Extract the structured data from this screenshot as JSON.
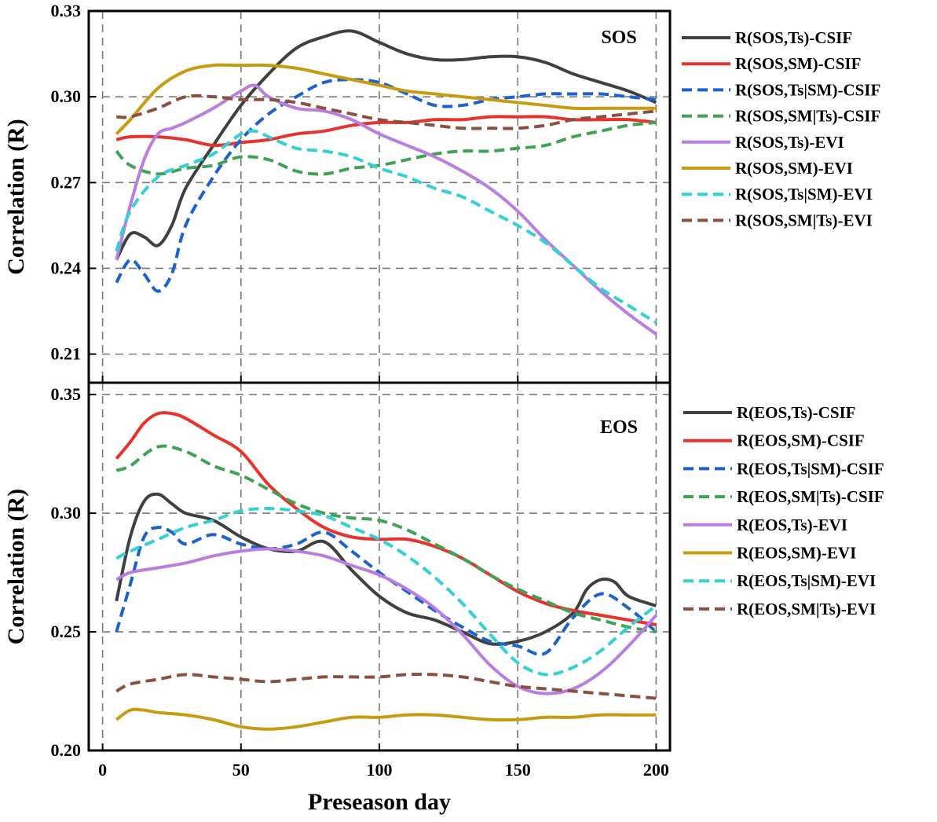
{
  "chart_data": [
    {
      "type": "line",
      "panel_label": "SOS",
      "xlabel": "Preseason day",
      "ylabel": "Correlation (R)",
      "xlim": [
        -5,
        205
      ],
      "ylim": [
        0.2,
        0.33
      ],
      "xticks": [
        0,
        50,
        100,
        150,
        200
      ],
      "xtick_labels": [
        "0",
        "50",
        "100",
        "150",
        "200"
      ],
      "yticks": [
        0.21,
        0.24,
        0.27,
        0.3,
        0.33
      ],
      "ytick_labels": [
        "0.21",
        "0.24",
        "0.27",
        "0.30",
        "0.33"
      ],
      "grid": true,
      "legend_position": "right",
      "series": [
        {
          "name": "R(SOS,Ts)-CSIF",
          "color": "#404040",
          "dash": "solid",
          "x": [
            5,
            10,
            15,
            20,
            25,
            30,
            40,
            50,
            60,
            70,
            80,
            90,
            100,
            110,
            120,
            130,
            140,
            150,
            160,
            170,
            180,
            190,
            200
          ],
          "y": [
            0.243,
            0.252,
            0.251,
            0.248,
            0.255,
            0.268,
            0.283,
            0.297,
            0.308,
            0.317,
            0.321,
            0.323,
            0.319,
            0.315,
            0.313,
            0.313,
            0.314,
            0.314,
            0.312,
            0.308,
            0.305,
            0.302,
            0.298
          ]
        },
        {
          "name": "R(SOS,SM)-CSIF",
          "color": "#e8322b",
          "dash": "solid",
          "x": [
            5,
            10,
            20,
            30,
            40,
            50,
            60,
            70,
            80,
            90,
            100,
            110,
            120,
            130,
            140,
            150,
            160,
            170,
            180,
            190,
            200
          ],
          "y": [
            0.285,
            0.286,
            0.286,
            0.285,
            0.283,
            0.284,
            0.285,
            0.287,
            0.288,
            0.29,
            0.291,
            0.291,
            0.292,
            0.292,
            0.293,
            0.293,
            0.293,
            0.292,
            0.292,
            0.292,
            0.291
          ]
        },
        {
          "name": "R(SOS,Ts|SM)-CSIF",
          "color": "#1b62cf",
          "dash": "dashed",
          "x": [
            5,
            10,
            15,
            20,
            25,
            30,
            40,
            50,
            60,
            70,
            80,
            90,
            100,
            110,
            120,
            130,
            140,
            150,
            160,
            170,
            180,
            190,
            200
          ],
          "y": [
            0.235,
            0.243,
            0.238,
            0.232,
            0.238,
            0.255,
            0.272,
            0.285,
            0.294,
            0.3,
            0.305,
            0.306,
            0.305,
            0.301,
            0.297,
            0.297,
            0.299,
            0.3,
            0.301,
            0.301,
            0.301,
            0.3,
            0.299
          ]
        },
        {
          "name": "R(SOS,SM|Ts)-CSIF",
          "color": "#3ea355",
          "dash": "dashed",
          "x": [
            5,
            10,
            20,
            30,
            40,
            50,
            60,
            70,
            80,
            90,
            100,
            110,
            120,
            130,
            140,
            150,
            160,
            170,
            180,
            190,
            200
          ],
          "y": [
            0.281,
            0.276,
            0.273,
            0.275,
            0.276,
            0.279,
            0.278,
            0.274,
            0.273,
            0.275,
            0.276,
            0.278,
            0.28,
            0.281,
            0.281,
            0.282,
            0.283,
            0.286,
            0.288,
            0.29,
            0.291
          ]
        },
        {
          "name": "R(SOS,Ts)-EVI",
          "color": "#b97ee0",
          "dash": "solid",
          "x": [
            5,
            10,
            15,
            20,
            25,
            30,
            40,
            50,
            55,
            60,
            70,
            80,
            90,
            100,
            110,
            120,
            130,
            140,
            150,
            160,
            170,
            180,
            190,
            200
          ],
          "y": [
            0.243,
            0.262,
            0.278,
            0.287,
            0.289,
            0.291,
            0.296,
            0.302,
            0.304,
            0.3,
            0.296,
            0.295,
            0.292,
            0.287,
            0.283,
            0.279,
            0.274,
            0.268,
            0.26,
            0.25,
            0.241,
            0.232,
            0.224,
            0.217
          ]
        },
        {
          "name": "R(SOS,SM)-EVI",
          "color": "#c89b13",
          "dash": "solid",
          "x": [
            5,
            10,
            20,
            30,
            40,
            50,
            60,
            70,
            80,
            90,
            100,
            110,
            120,
            130,
            140,
            150,
            160,
            170,
            180,
            190,
            200
          ],
          "y": [
            0.287,
            0.292,
            0.303,
            0.309,
            0.311,
            0.311,
            0.311,
            0.31,
            0.308,
            0.306,
            0.304,
            0.302,
            0.301,
            0.3,
            0.299,
            0.298,
            0.297,
            0.296,
            0.296,
            0.296,
            0.296
          ]
        },
        {
          "name": "R(SOS,Ts|SM)-EVI",
          "color": "#33d1d6",
          "dash": "dashed",
          "x": [
            5,
            10,
            20,
            30,
            40,
            50,
            55,
            60,
            70,
            80,
            90,
            100,
            110,
            120,
            130,
            140,
            150,
            160,
            170,
            180,
            190,
            200
          ],
          "y": [
            0.246,
            0.26,
            0.272,
            0.276,
            0.28,
            0.287,
            0.288,
            0.286,
            0.282,
            0.281,
            0.279,
            0.275,
            0.272,
            0.268,
            0.265,
            0.26,
            0.255,
            0.249,
            0.241,
            0.233,
            0.227,
            0.221
          ]
        },
        {
          "name": "R(SOS,SM|Ts)-EVI",
          "color": "#8b5042",
          "dash": "dashed",
          "x": [
            5,
            10,
            20,
            30,
            40,
            50,
            60,
            70,
            80,
            90,
            100,
            110,
            120,
            130,
            140,
            150,
            160,
            170,
            180,
            190,
            200
          ],
          "y": [
            0.293,
            0.293,
            0.296,
            0.3,
            0.3,
            0.299,
            0.299,
            0.298,
            0.296,
            0.294,
            0.292,
            0.291,
            0.29,
            0.289,
            0.289,
            0.289,
            0.29,
            0.292,
            0.293,
            0.294,
            0.295
          ]
        }
      ]
    },
    {
      "type": "line",
      "panel_label": "EOS",
      "xlabel": "Preseason day",
      "ylabel": "Correlation (R)",
      "xlim": [
        -5,
        205
      ],
      "ylim": [
        0.2,
        0.355
      ],
      "xticks": [
        0,
        50,
        100,
        150,
        200
      ],
      "xtick_labels": [
        "0",
        "50",
        "100",
        "150",
        "200"
      ],
      "yticks": [
        0.2,
        0.25,
        0.3,
        0.35
      ],
      "ytick_labels": [
        "0.20",
        "0.25",
        "0.30",
        "0.35"
      ],
      "grid": true,
      "legend_position": "right",
      "series": [
        {
          "name": "R(EOS,Ts)-CSIF",
          "color": "#404040",
          "dash": "solid",
          "x": [
            5,
            10,
            15,
            20,
            25,
            30,
            40,
            50,
            60,
            70,
            80,
            90,
            100,
            110,
            120,
            130,
            140,
            150,
            160,
            170,
            175,
            180,
            185,
            190,
            200
          ],
          "y": [
            0.263,
            0.29,
            0.305,
            0.308,
            0.304,
            0.3,
            0.297,
            0.29,
            0.285,
            0.284,
            0.288,
            0.276,
            0.265,
            0.258,
            0.255,
            0.25,
            0.245,
            0.246,
            0.25,
            0.258,
            0.268,
            0.272,
            0.271,
            0.265,
            0.261
          ]
        },
        {
          "name": "R(EOS,SM)-CSIF",
          "color": "#e8322b",
          "dash": "solid",
          "x": [
            5,
            10,
            15,
            20,
            25,
            30,
            40,
            50,
            60,
            70,
            80,
            90,
            100,
            110,
            120,
            130,
            140,
            150,
            160,
            170,
            180,
            190,
            200
          ],
          "y": [
            0.323,
            0.33,
            0.338,
            0.342,
            0.342,
            0.34,
            0.333,
            0.326,
            0.312,
            0.302,
            0.294,
            0.29,
            0.289,
            0.289,
            0.286,
            0.281,
            0.274,
            0.267,
            0.262,
            0.259,
            0.257,
            0.255,
            0.253
          ]
        },
        {
          "name": "R(EOS,Ts|SM)-CSIF",
          "color": "#1b62cf",
          "dash": "dashed",
          "x": [
            5,
            10,
            15,
            20,
            25,
            30,
            40,
            50,
            60,
            70,
            80,
            90,
            100,
            110,
            120,
            130,
            140,
            150,
            160,
            170,
            180,
            190,
            200
          ],
          "y": [
            0.25,
            0.27,
            0.29,
            0.294,
            0.292,
            0.287,
            0.291,
            0.287,
            0.285,
            0.287,
            0.292,
            0.284,
            0.275,
            0.267,
            0.259,
            0.252,
            0.246,
            0.244,
            0.241,
            0.256,
            0.266,
            0.26,
            0.25
          ]
        },
        {
          "name": "R(EOS,SM|Ts)-CSIF",
          "color": "#3ea355",
          "dash": "dashed",
          "x": [
            5,
            10,
            20,
            30,
            40,
            50,
            60,
            70,
            80,
            90,
            100,
            110,
            120,
            130,
            140,
            150,
            160,
            170,
            180,
            190,
            200
          ],
          "y": [
            0.318,
            0.32,
            0.328,
            0.326,
            0.32,
            0.316,
            0.31,
            0.304,
            0.3,
            0.298,
            0.297,
            0.293,
            0.287,
            0.281,
            0.274,
            0.268,
            0.263,
            0.258,
            0.255,
            0.252,
            0.25
          ]
        },
        {
          "name": "R(EOS,Ts)-EVI",
          "color": "#b97ee0",
          "dash": "solid",
          "x": [
            5,
            10,
            20,
            30,
            40,
            50,
            60,
            70,
            80,
            90,
            100,
            110,
            120,
            130,
            140,
            150,
            160,
            170,
            180,
            190,
            200
          ],
          "y": [
            0.272,
            0.275,
            0.277,
            0.279,
            0.282,
            0.284,
            0.285,
            0.284,
            0.282,
            0.278,
            0.274,
            0.268,
            0.26,
            0.249,
            0.236,
            0.227,
            0.224,
            0.226,
            0.233,
            0.244,
            0.257
          ]
        },
        {
          "name": "R(EOS,SM)-EVI",
          "color": "#c89b13",
          "dash": "solid",
          "x": [
            5,
            10,
            15,
            20,
            30,
            40,
            50,
            60,
            70,
            80,
            90,
            100,
            110,
            120,
            130,
            140,
            150,
            160,
            170,
            180,
            190,
            200
          ],
          "y": [
            0.213,
            0.217,
            0.217,
            0.216,
            0.215,
            0.213,
            0.21,
            0.209,
            0.21,
            0.212,
            0.214,
            0.214,
            0.215,
            0.215,
            0.214,
            0.213,
            0.213,
            0.214,
            0.214,
            0.215,
            0.215,
            0.215
          ]
        },
        {
          "name": "R(EOS,Ts|SM)-EVI",
          "color": "#33d1d6",
          "dash": "dashed",
          "x": [
            5,
            10,
            20,
            30,
            40,
            50,
            60,
            70,
            80,
            90,
            100,
            110,
            120,
            130,
            140,
            150,
            160,
            170,
            180,
            190,
            200
          ],
          "y": [
            0.281,
            0.284,
            0.289,
            0.294,
            0.297,
            0.301,
            0.302,
            0.301,
            0.299,
            0.294,
            0.289,
            0.282,
            0.273,
            0.262,
            0.249,
            0.237,
            0.232,
            0.235,
            0.242,
            0.252,
            0.261
          ]
        },
        {
          "name": "R(EOS,SM|Ts)-EVI",
          "color": "#8b5042",
          "dash": "dashed",
          "x": [
            5,
            10,
            20,
            30,
            40,
            50,
            60,
            70,
            80,
            90,
            100,
            110,
            120,
            130,
            140,
            150,
            160,
            170,
            180,
            190,
            200
          ],
          "y": [
            0.225,
            0.228,
            0.23,
            0.232,
            0.231,
            0.23,
            0.229,
            0.23,
            0.231,
            0.231,
            0.231,
            0.232,
            0.232,
            0.231,
            0.229,
            0.227,
            0.226,
            0.225,
            0.224,
            0.223,
            0.222
          ]
        }
      ]
    }
  ]
}
